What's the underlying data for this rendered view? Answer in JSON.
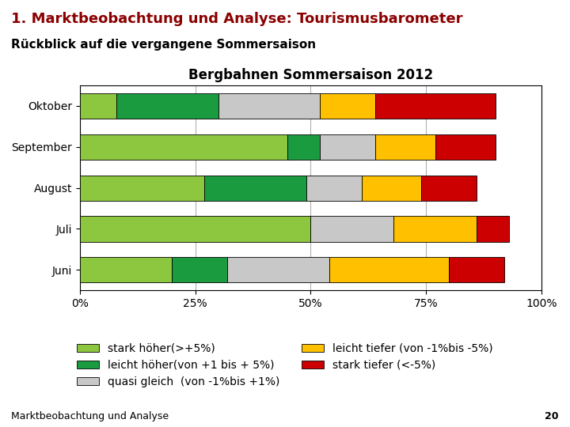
{
  "chart_data": {
    "type": "bar",
    "orientation": "horizontal",
    "stacked": true,
    "title": "Bergbahnen Sommersaison 2012",
    "subtitle": "Rückblick auf die vergangene Sommersaison",
    "annotations": [
      "1. Marktbeobachtung und Analyse: Tourismusbarometer",
      "Marktbeobachtung und Analyse",
      "20"
    ],
    "categories": [
      "Oktober",
      "September",
      "August",
      "Juli",
      "Juni"
    ],
    "series": [
      {
        "name": "stark höher(>+5%)",
        "color": "#8DC63F",
        "values": [
          8,
          45,
          27,
          50,
          20
        ]
      },
      {
        "name": "leicht höher(von +1 bis + 5%)",
        "color": "#1A9B40",
        "values": [
          22,
          7,
          22,
          0,
          12
        ]
      },
      {
        "name": "quasi gleich  (von -1%bis +1%)",
        "color": "#C8C8C8",
        "values": [
          22,
          12,
          12,
          18,
          22
        ]
      },
      {
        "name": "leicht tiefer (von -1%bis -5%)",
        "color": "#FFC000",
        "values": [
          12,
          13,
          13,
          18,
          26
        ]
      },
      {
        "name": "stark tiefer (<-5%)",
        "color": "#CC0000",
        "values": [
          26,
          13,
          12,
          7,
          12
        ]
      }
    ],
    "xlim": [
      0,
      100
    ],
    "xticks": [
      {
        "value": 0,
        "label": "0%"
      },
      {
        "value": 25,
        "label": "25%"
      },
      {
        "value": 50,
        "label": "50%"
      },
      {
        "value": 75,
        "label": "75%"
      },
      {
        "value": 100,
        "label": "100%"
      }
    ],
    "grid": true,
    "legend": "lower center"
  }
}
